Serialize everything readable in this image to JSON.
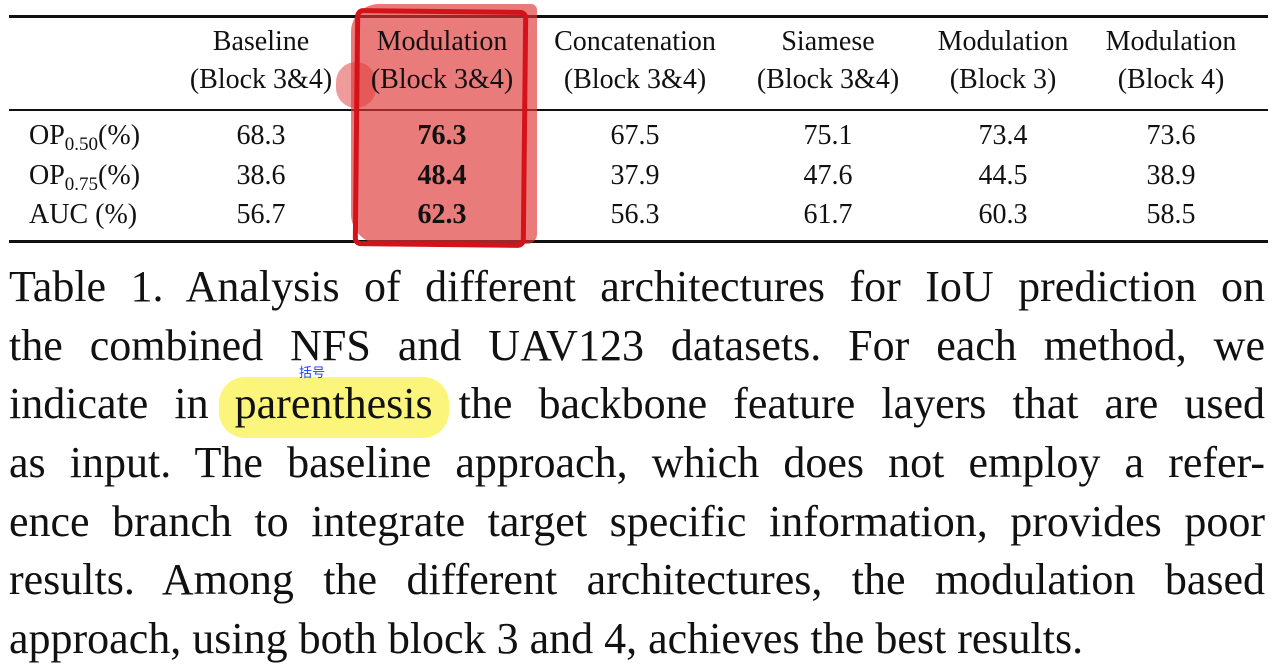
{
  "table": {
    "headers_line1": [
      "Baseline",
      "Modulation",
      "Concatenation",
      "Siamese",
      "Modulation",
      "Modulation"
    ],
    "headers_line2": [
      "(Block 3&4)",
      "(Block 3&4)",
      "(Block 3&4)",
      "(Block 3&4)",
      "(Block 3)",
      "(Block 4)"
    ],
    "rows": [
      {
        "label_main": "OP",
        "label_sub": "0.50",
        "label_suffix": "(%)",
        "values": [
          "68.3",
          "76.3",
          "67.5",
          "75.1",
          "73.4",
          "73.6"
        ]
      },
      {
        "label_main": "OP",
        "label_sub": "0.75",
        "label_suffix": "(%)",
        "values": [
          "38.6",
          "48.4",
          "37.9",
          "47.6",
          "44.5",
          "38.9"
        ]
      },
      {
        "label_main": "AUC (%)",
        "label_sub": "",
        "label_suffix": "",
        "values": [
          "56.7",
          "62.3",
          "56.3",
          "61.7",
          "60.3",
          "58.5"
        ]
      }
    ],
    "highlight_color": "#df3737",
    "box_color": "#d41219"
  },
  "caption": {
    "line1": "Table 1. Analysis of different architectures for IoU prediction on",
    "line2": "the combined NFS and UAV123 datasets. For each method, we",
    "line3_pre": "indicate in",
    "line3_word": "parenthesis",
    "line3_post": "the backbone feature layers that are used",
    "line4": "as input. The baseline approach, which does not employ a refer-",
    "line5": "ence branch to integrate target specific information, provides poor",
    "line6": "results. Among the different architectures, the modulation based",
    "line7": "approach, using both block 3 and 4, achieves the best results.",
    "highlight_color": "#faf564"
  },
  "annotation": {
    "text": "括号",
    "color": "#1a3fff"
  }
}
